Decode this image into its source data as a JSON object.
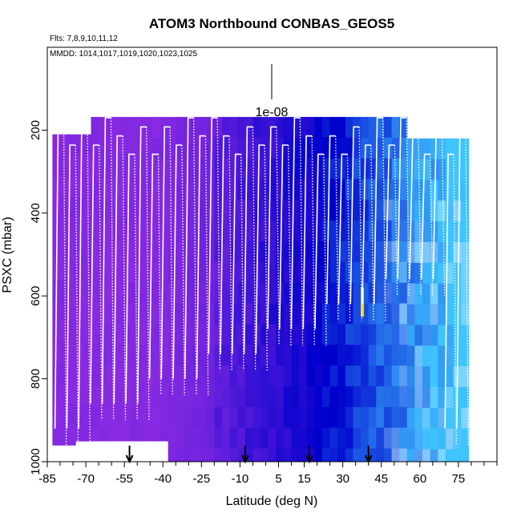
{
  "chart_data": {
    "type": "heatmap",
    "title": "ATOM3 Northbound CONBAS_GEOS5",
    "flights_note": "Flts: 7,8,9,10,11,12",
    "dates_note": "MMDD: 1014,1017,1019,1020,1023,1025",
    "xlabel": "Latitude (deg N)",
    "ylabel": "PSXC (mbar)",
    "xlim": [
      -85,
      90
    ],
    "ylim": [
      1000,
      0
    ],
    "x_ticks": [
      -85,
      -70,
      -55,
      -40,
      -25,
      -10,
      5,
      15,
      30,
      45,
      60,
      75
    ],
    "y_ticks": [
      200,
      400,
      600,
      800,
      1000
    ],
    "legend_value": "1e-08",
    "color_scale": {
      "low": "#8a2be2",
      "mid": "#0000cd",
      "high": "#3fc4ff",
      "peak": "#ffd400"
    },
    "arrow_latitudes": [
      -53,
      -8,
      17,
      40
    ],
    "flight_path_style": "white dotted/solid profiles",
    "sample_region_lat": [
      -83,
      79
    ],
    "sample_region_pres": [
      170,
      960
    ]
  }
}
